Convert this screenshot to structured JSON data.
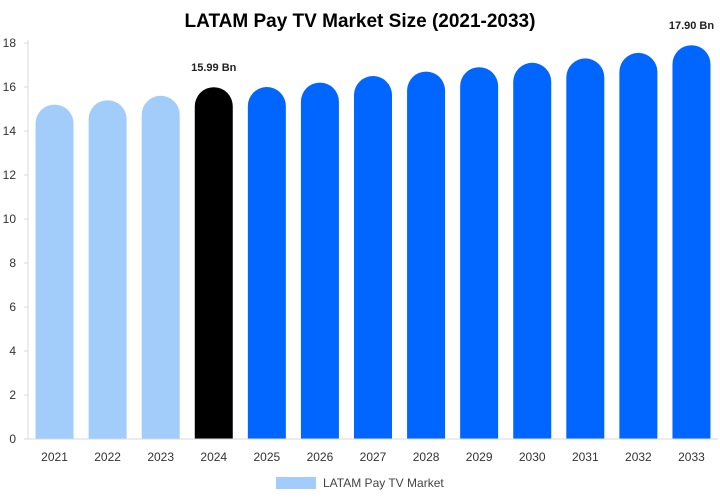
{
  "chart_data": {
    "type": "bar",
    "title": "LATAM Pay TV Market Size (2021-2033)",
    "categories": [
      "2021",
      "2022",
      "2023",
      "2024",
      "2025",
      "2026",
      "2027",
      "2028",
      "2029",
      "2030",
      "2031",
      "2032",
      "2033"
    ],
    "series": [
      {
        "name": "LATAM Pay TV Market",
        "values": [
          15.2,
          15.4,
          15.6,
          15.99,
          16.0,
          16.2,
          16.5,
          16.7,
          16.9,
          17.1,
          17.3,
          17.55,
          17.9
        ]
      }
    ],
    "data_labels": [
      {
        "category": "2024",
        "text": "15.99 Bn"
      },
      {
        "category": "2033",
        "text": "17.90 Bn"
      }
    ],
    "ylim": [
      0,
      18
    ],
    "yticks": [
      0,
      2,
      4,
      6,
      8,
      10,
      12,
      14,
      16,
      18
    ],
    "grid": false,
    "legend_position": "bottom-center",
    "colors": {
      "historical": "#a2cdfb",
      "current": "#000000",
      "forecast": "#0166ff",
      "axis": "#d8d8d8",
      "legend_swatch": "#a2cdfb"
    }
  }
}
